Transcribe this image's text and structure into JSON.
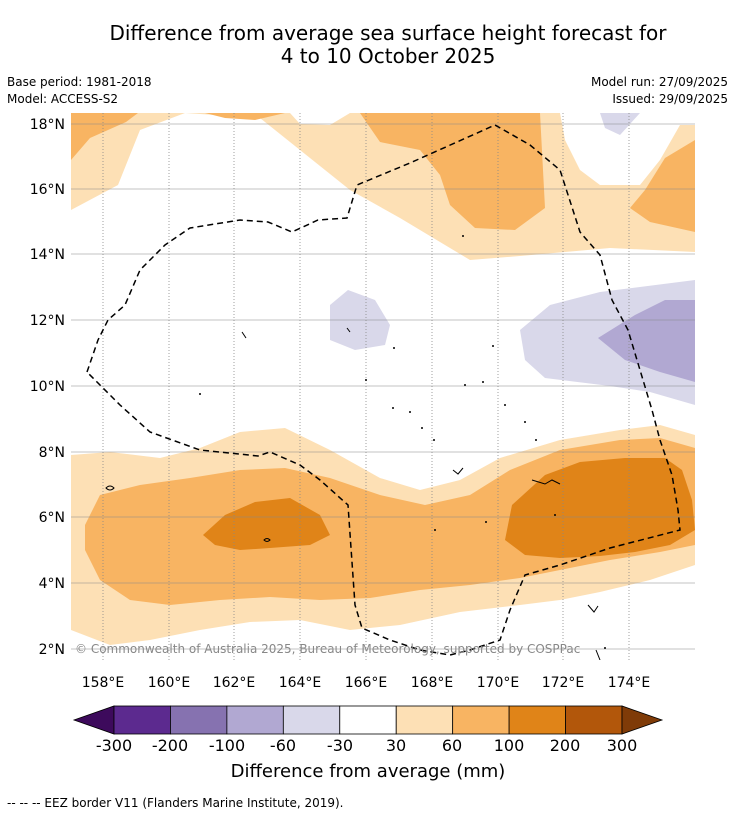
{
  "title": {
    "line1": "Difference from average sea surface height forecast for",
    "line2": "4 to 10 October 2025"
  },
  "meta": {
    "base_period": "Base period: 1981-2018",
    "model": "Model: ACCESS-S2",
    "model_run": "Model run: 27/09/2025",
    "issued": "Issued: 29/09/2025"
  },
  "map": {
    "lat_labels": [
      "18°N",
      "16°N",
      "14°N",
      "12°N",
      "10°N",
      "8°N",
      "6°N",
      "4°N",
      "2°N"
    ],
    "lon_labels": [
      "158°E",
      "160°E",
      "162°E",
      "164°E",
      "166°E",
      "168°E",
      "170°E",
      "172°E",
      "174°E"
    ],
    "copyright": "© Commonwealth of Australia 2025, Bureau of Meteorology, supported by COSPPac"
  },
  "colorbar": {
    "labels": [
      "-300",
      "-200",
      "-100",
      "-60",
      "-30",
      "30",
      "60",
      "100",
      "200",
      "300"
    ],
    "colors": [
      "#3d0a5c",
      "#5c2a8f",
      "#8672b0",
      "#b1a8d2",
      "#d9d8ea",
      "#ffffff",
      "#fde0b5",
      "#f8b462",
      "#e08418",
      "#b2570b",
      "#7f3b08"
    ],
    "title": "Difference from average (mm)"
  },
  "footnote": "--  --  -- EEZ border V11 (Flanders Marine Institute, 2019)."
}
